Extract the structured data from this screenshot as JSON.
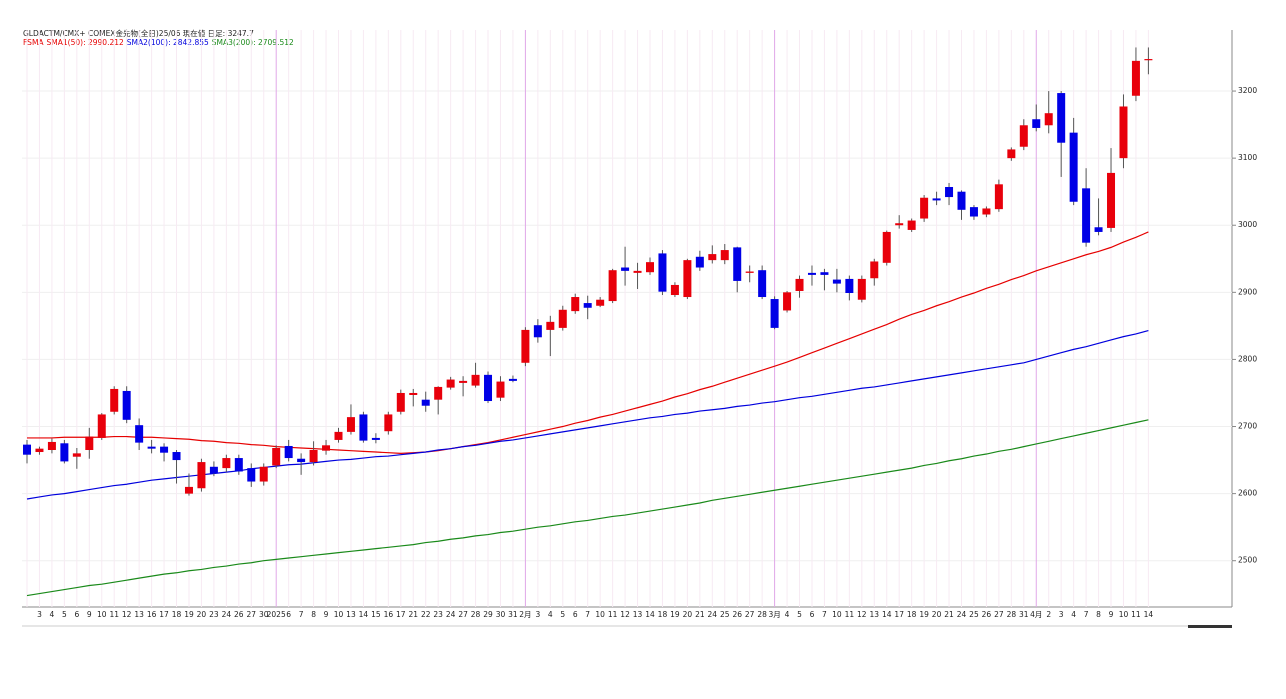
{
  "chart_data": {
    "type": "candlestick",
    "title": "GLDACTM/CMX+ COMEX金先物(全日)25/06 現在値 日足: 3247.7",
    "indicator_label": "FSMA",
    "categories": [
      null,
      "3",
      "4",
      "5",
      "6",
      "9",
      "10",
      "11",
      "12",
      "13",
      "16",
      "17",
      "18",
      "19",
      "20",
      "23",
      "24",
      "26",
      "27",
      "30",
      "2025",
      "6",
      "7",
      "8",
      "9",
      "10",
      "13",
      "14",
      "15",
      "16",
      "17",
      "21",
      "22",
      "23",
      "24",
      "27",
      "28",
      "29",
      "30",
      "31",
      "2月",
      "3",
      "4",
      "5",
      "6",
      "7",
      "10",
      "11",
      "12",
      "13",
      "14",
      "18",
      "19",
      "20",
      "21",
      "24",
      "25",
      "26",
      "27",
      "28",
      "3月",
      "4",
      "5",
      "6",
      "7",
      "10",
      "11",
      "12",
      "13",
      "14",
      "17",
      "18",
      "19",
      "20",
      "21",
      "24",
      "25",
      "26",
      "27",
      "28",
      "31",
      "4月",
      "2",
      "3",
      "4",
      "7",
      "8",
      "9",
      "10",
      "11",
      "14"
    ],
    "open": [
      2673,
      2662,
      2665,
      2675,
      2655,
      2665,
      2683,
      2722,
      2753,
      2702,
      2670,
      2670,
      2662,
      2600,
      2608,
      2640,
      2638,
      2653,
      2638,
      2618,
      2642,
      2671,
      2652,
      2647,
      2664,
      2680,
      2692,
      2718,
      2683,
      2693,
      2722,
      2747,
      2740,
      2740,
      2758,
      2765,
      2761,
      2777,
      2743,
      2771,
      2795,
      2851,
      2844,
      2847,
      2872,
      2884,
      2880,
      2887,
      2937,
      2929,
      2930,
      2958,
      2896,
      2893,
      2953,
      2948,
      2948,
      2967,
      2929,
      2933,
      2890,
      2873,
      2902,
      2929,
      2930,
      2919,
      2920,
      2889,
      2921,
      2944,
      3000,
      2993,
      3010,
      3040,
      3057,
      3050,
      3027,
      3016,
      3024,
      3100,
      3117,
      3158,
      3149,
      3197,
      3138,
      3055,
      2997,
      2996,
      3100,
      3193,
      3246
    ],
    "high": [
      2680,
      2670,
      2682,
      2680,
      2668,
      2698,
      2720,
      2760,
      2760,
      2712,
      2680,
      2675,
      2665,
      2630,
      2652,
      2648,
      2658,
      2658,
      2645,
      2645,
      2672,
      2680,
      2660,
      2678,
      2680,
      2698,
      2733,
      2722,
      2690,
      2722,
      2755,
      2756,
      2752,
      2760,
      2774,
      2775,
      2795,
      2782,
      2775,
      2776,
      2848,
      2860,
      2865,
      2880,
      2898,
      2895,
      2893,
      2935,
      2968,
      2944,
      2952,
      2963,
      2915,
      2950,
      2962,
      2970,
      2972,
      2968,
      2940,
      2940,
      2894,
      2902,
      2925,
      2940,
      2935,
      2935,
      2925,
      2925,
      2950,
      2992,
      3015,
      3010,
      3045,
      3050,
      3063,
      3052,
      3030,
      3028,
      3068,
      3116,
      3158,
      3180,
      3200,
      3200,
      3160,
      3085,
      3040,
      3115,
      3195,
      3265,
      3265
    ],
    "low": [
      2645,
      2658,
      2660,
      2645,
      2637,
      2652,
      2680,
      2718,
      2705,
      2665,
      2660,
      2648,
      2615,
      2597,
      2603,
      2626,
      2632,
      2628,
      2610,
      2612,
      2638,
      2648,
      2628,
      2642,
      2658,
      2676,
      2688,
      2676,
      2675,
      2688,
      2718,
      2730,
      2722,
      2718,
      2755,
      2745,
      2758,
      2735,
      2738,
      2766,
      2790,
      2825,
      2805,
      2843,
      2868,
      2860,
      2878,
      2884,
      2910,
      2905,
      2926,
      2896,
      2893,
      2890,
      2932,
      2943,
      2942,
      2900,
      2915,
      2890,
      2845,
      2870,
      2892,
      2910,
      2903,
      2900,
      2888,
      2885,
      2910,
      2940,
      2995,
      2990,
      3005,
      3030,
      3030,
      3008,
      3008,
      3012,
      3020,
      3096,
      3112,
      3140,
      3137,
      3072,
      3030,
      2968,
      2985,
      2990,
      3085,
      3185,
      3225
    ],
    "close": [
      2658,
      2667,
      2677,
      2648,
      2660,
      2685,
      2718,
      2756,
      2710,
      2676,
      2667,
      2661,
      2650,
      2610,
      2647,
      2630,
      2653,
      2633,
      2618,
      2640,
      2668,
      2653,
      2647,
      2665,
      2672,
      2692,
      2714,
      2679,
      2680,
      2718,
      2750,
      2750,
      2731,
      2759,
      2770,
      2768,
      2777,
      2738,
      2767,
      2768,
      2844,
      2833,
      2856,
      2874,
      2893,
      2877,
      2889,
      2933,
      2932,
      2932,
      2945,
      2901,
      2911,
      2948,
      2937,
      2957,
      2963,
      2917,
      2931,
      2893,
      2847,
      2900,
      2920,
      2926,
      2926,
      2913,
      2899,
      2920,
      2946,
      2990,
      3003,
      3007,
      3041,
      3037,
      3042,
      3023,
      3013,
      3025,
      3061,
      3113,
      3149,
      3145,
      3167,
      3123,
      3035,
      2974,
      2990,
      3078,
      3177,
      3245,
      3247.7
    ],
    "up_color": "#e8000b",
    "down_color": "#0000e6",
    "series": [
      {
        "name": "SMA1(50): 2990.212",
        "color": "#e60000",
        "values": [
          2683,
          2683,
          2683,
          2684,
          2684,
          2684,
          2684,
          2685,
          2685,
          2684,
          2684,
          2683,
          2682,
          2681,
          2679,
          2678,
          2676,
          2675,
          2673,
          2672,
          2670,
          2669,
          2668,
          2667,
          2666,
          2665,
          2664,
          2663,
          2662,
          2661,
          2660,
          2661,
          2662,
          2664,
          2667,
          2670,
          2673,
          2676,
          2680,
          2684,
          2688,
          2692,
          2696,
          2700,
          2705,
          2709,
          2714,
          2718,
          2723,
          2728,
          2733,
          2738,
          2744,
          2749,
          2755,
          2760,
          2766,
          2772,
          2778,
          2784,
          2790,
          2796,
          2803,
          2810,
          2817,
          2824,
          2831,
          2838,
          2845,
          2852,
          2860,
          2867,
          2873,
          2880,
          2886,
          2893,
          2899,
          2906,
          2912,
          2919,
          2925,
          2932,
          2938,
          2944,
          2950,
          2956,
          2961,
          2967,
          2975,
          2982,
          2990
        ]
      },
      {
        "name": "SMA2(100): 2842.855",
        "color": "#0000dd",
        "values": [
          2592,
          2595,
          2598,
          2600,
          2603,
          2606,
          2609,
          2612,
          2614,
          2617,
          2620,
          2622,
          2624,
          2626,
          2628,
          2630,
          2632,
          2634,
          2637,
          2639,
          2641,
          2643,
          2644,
          2646,
          2648,
          2650,
          2651,
          2653,
          2655,
          2656,
          2658,
          2660,
          2662,
          2665,
          2667,
          2670,
          2672,
          2675,
          2678,
          2680,
          2683,
          2686,
          2689,
          2692,
          2695,
          2698,
          2701,
          2704,
          2707,
          2710,
          2713,
          2715,
          2718,
          2720,
          2723,
          2725,
          2727,
          2730,
          2732,
          2735,
          2737,
          2740,
          2743,
          2745,
          2748,
          2751,
          2754,
          2757,
          2759,
          2762,
          2765,
          2768,
          2771,
          2774,
          2777,
          2780,
          2783,
          2786,
          2789,
          2792,
          2795,
          2800,
          2805,
          2810,
          2815,
          2819,
          2824,
          2829,
          2834,
          2838,
          2843
        ]
      },
      {
        "name": "SMA3(200): 2709.512",
        "color": "#1a8a1a",
        "values": [
          2448,
          2451,
          2454,
          2457,
          2460,
          2463,
          2465,
          2468,
          2471,
          2474,
          2477,
          2480,
          2482,
          2485,
          2487,
          2490,
          2492,
          2495,
          2497,
          2500,
          2502,
          2504,
          2506,
          2508,
          2510,
          2512,
          2514,
          2516,
          2518,
          2520,
          2522,
          2524,
          2527,
          2529,
          2532,
          2534,
          2537,
          2539,
          2542,
          2544,
          2547,
          2550,
          2552,
          2555,
          2558,
          2560,
          2563,
          2566,
          2568,
          2571,
          2574,
          2577,
          2580,
          2583,
          2586,
          2590,
          2593,
          2596,
          2599,
          2602,
          2605,
          2608,
          2611,
          2614,
          2617,
          2620,
          2623,
          2626,
          2629,
          2632,
          2635,
          2638,
          2642,
          2645,
          2649,
          2652,
          2656,
          2659,
          2663,
          2666,
          2670,
          2674,
          2678,
          2682,
          2686,
          2690,
          2694,
          2698,
          2702,
          2706,
          2710
        ]
      }
    ],
    "ylim": [
      2431,
      3291
    ],
    "yticks": [
      2500,
      2600,
      2700,
      2800,
      2900,
      3000,
      3100,
      3200
    ],
    "grid": true
  }
}
